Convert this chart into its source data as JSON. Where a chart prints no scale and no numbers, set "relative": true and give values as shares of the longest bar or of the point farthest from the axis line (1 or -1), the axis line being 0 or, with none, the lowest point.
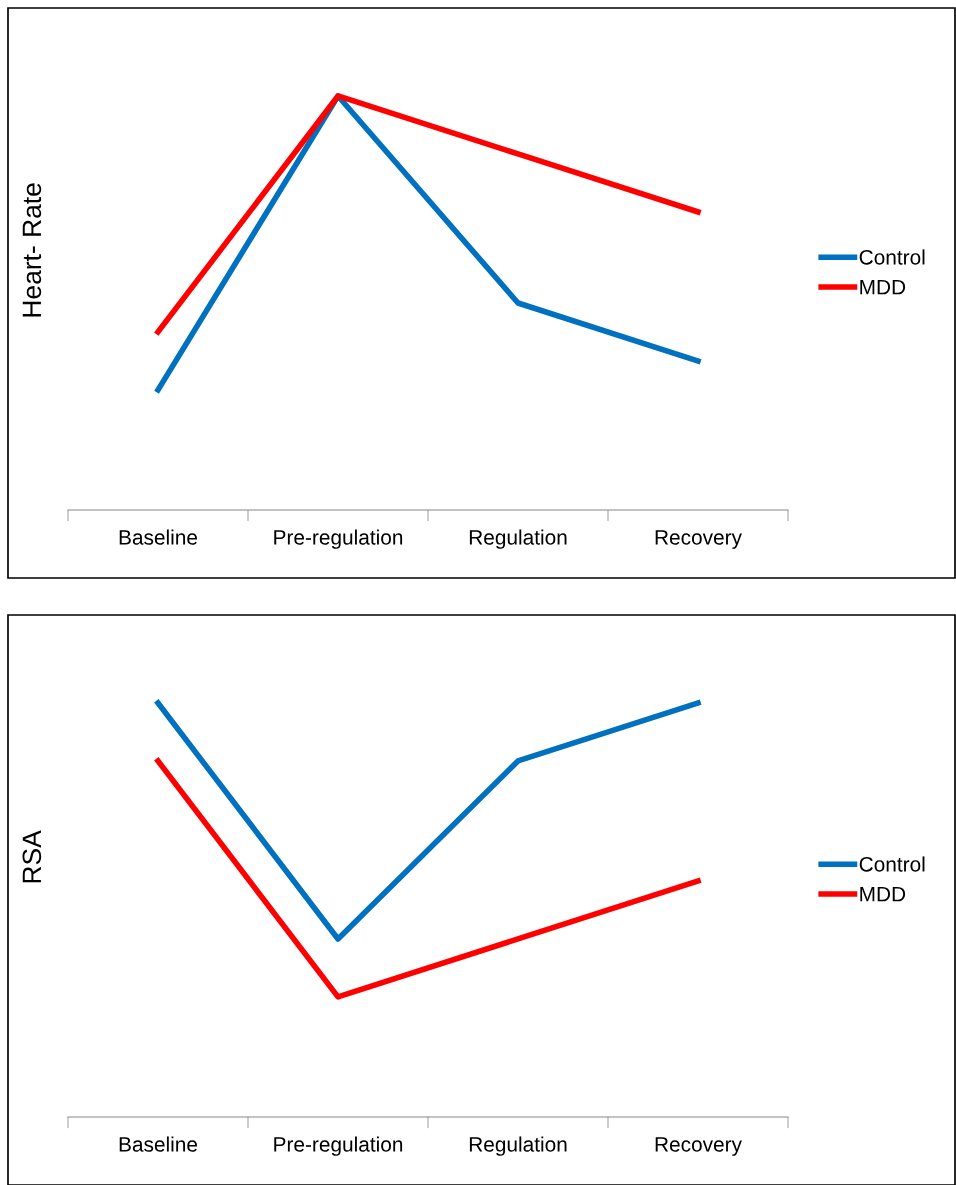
{
  "chart_data": [
    {
      "type": "line",
      "relative": true,
      "ylabel": "Heart- Rate",
      "categories": [
        "Baseline",
        "Pre-regulation",
        "Regulation",
        "Recovery"
      ],
      "legend": "right",
      "marker": "none",
      "line_style": "solid",
      "grid": false,
      "series": [
        {
          "name": "Control",
          "color": "#0070c0",
          "values": [
            0.29,
            1,
            0.5,
            0.36
          ]
        },
        {
          "name": "MDD",
          "color": "#ff0000",
          "values": [
            0.43,
            1,
            0.86,
            0.72
          ]
        }
      ]
    },
    {
      "type": "line",
      "relative": true,
      "ylabel": "RSA",
      "categories": [
        "Baseline",
        "Pre-regulation",
        "Regulation",
        "Recovery"
      ],
      "legend": "right",
      "marker": "none",
      "line_style": "solid",
      "grid": false,
      "series": [
        {
          "name": "Control",
          "color": "#0070c0",
          "values": [
            1,
            0.43,
            0.86,
            1
          ]
        },
        {
          "name": "MDD",
          "color": "#ff0000",
          "values": [
            0.86,
            0.29,
            0.43,
            0.57
          ]
        }
      ]
    }
  ]
}
